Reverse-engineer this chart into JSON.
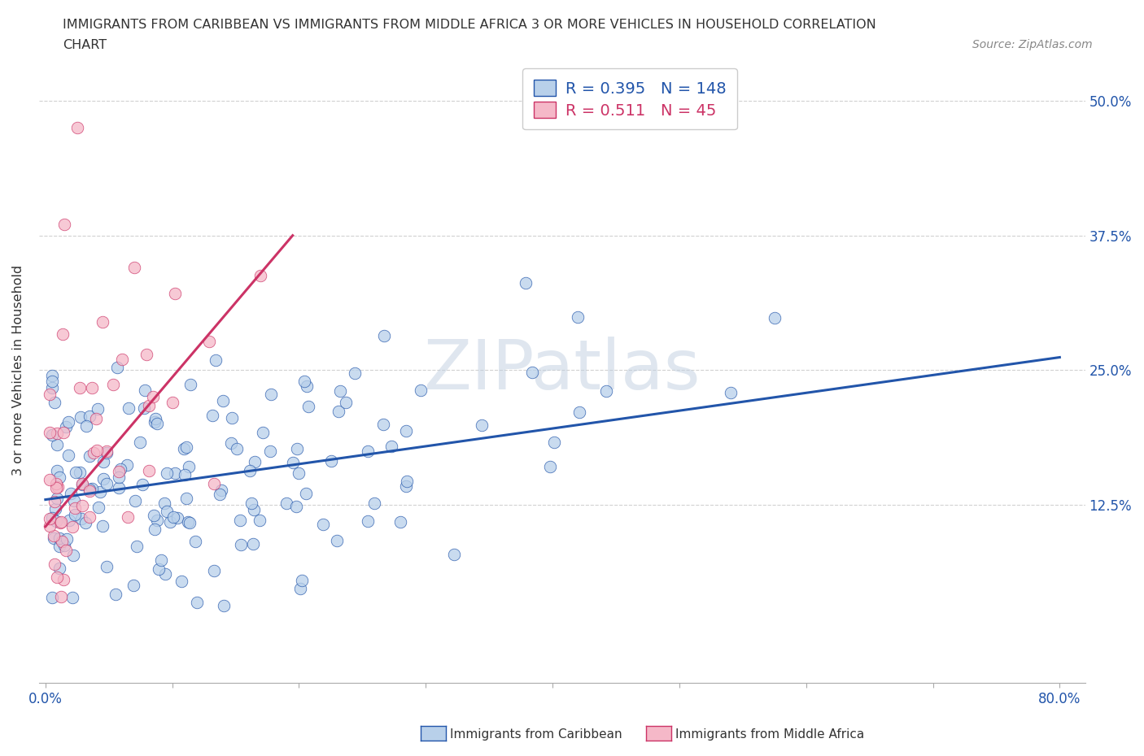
{
  "title_line1": "IMMIGRANTS FROM CARIBBEAN VS IMMIGRANTS FROM MIDDLE AFRICA 3 OR MORE VEHICLES IN HOUSEHOLD CORRELATION",
  "title_line2": "CHART",
  "source_text": "Source: ZipAtlas.com",
  "xlim": [
    -0.005,
    0.82
  ],
  "ylim": [
    -0.04,
    0.54
  ],
  "xticks": [
    0.0,
    0.1,
    0.2,
    0.3,
    0.4,
    0.5,
    0.6,
    0.7,
    0.8
  ],
  "xticklabels": [
    "0.0%",
    "",
    "",
    "",
    "",
    "",
    "",
    "",
    "80.0%"
  ],
  "yticks": [
    0.125,
    0.25,
    0.375,
    0.5
  ],
  "yticklabels": [
    "12.5%",
    "25.0%",
    "37.5%",
    "50.0%"
  ],
  "ylabel": "3 or more Vehicles in Household",
  "legend1_R": "0.395",
  "legend1_N": "148",
  "legend2_R": "0.511",
  "legend2_N": "45",
  "color_caribbean": "#b8d0ea",
  "color_middle_africa": "#f5b8c8",
  "line_color_caribbean": "#2255aa",
  "line_color_middle_africa": "#cc3366",
  "background_color": "#ffffff",
  "grid_color": "#cccccc",
  "carib_trend_x0": 0.0,
  "carib_trend_x1": 0.8,
  "carib_trend_y0": 0.13,
  "carib_trend_y1": 0.262,
  "africa_trend_x0": 0.0,
  "africa_trend_x1": 0.195,
  "africa_trend_y0": 0.105,
  "africa_trend_y1": 0.375,
  "watermark_text": "ZIPatlas",
  "bottom_legend_carib": "Immigrants from Caribbean",
  "bottom_legend_africa": "Immigrants from Middle Africa"
}
